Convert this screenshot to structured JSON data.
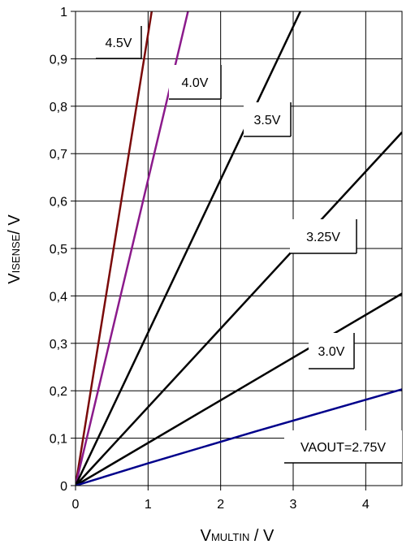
{
  "chart_data": {
    "type": "line",
    "xlabel": {
      "main": "V",
      "sub": "MULTIN",
      "unit": " / V"
    },
    "ylabel": {
      "main": "V",
      "sub": "ISENSE",
      "unit": "/ V"
    },
    "xlim": [
      0,
      4.5
    ],
    "ylim": [
      0,
      1
    ],
    "x_ticks": [
      0,
      1,
      2,
      3,
      4
    ],
    "x_tick_labels": [
      "0",
      "1",
      "2",
      "3",
      "4"
    ],
    "y_ticks": [
      0,
      0.1,
      0.2,
      0.3,
      0.4,
      0.5,
      0.6,
      0.7,
      0.8,
      0.9,
      1
    ],
    "y_tick_labels": [
      "0",
      "0,1",
      "0,2",
      "0,3",
      "0,4",
      "0,5",
      "0,6",
      "0,7",
      "0,8",
      "0,9",
      "1"
    ],
    "grid": true,
    "series": [
      {
        "name": "4.5V",
        "color": "#7a0a0a",
        "x": [
          0,
          1.05
        ],
        "y": [
          0,
          1
        ]
      },
      {
        "name": "4.0V",
        "color": "#8b1a8b",
        "x": [
          0,
          1.55
        ],
        "y": [
          0,
          1
        ]
      },
      {
        "name": "3.5V",
        "color": "#000000",
        "x": [
          0,
          3.1
        ],
        "y": [
          0,
          1
        ]
      },
      {
        "name": "3.25V",
        "color": "#000000",
        "x": [
          0,
          4.5
        ],
        "y": [
          0,
          0.745
        ]
      },
      {
        "name": "3.0V",
        "color": "#000000",
        "x": [
          0,
          4.5
        ],
        "y": [
          0,
          0.405
        ]
      },
      {
        "name": "VAOUT=2.75V",
        "color": "#00008b",
        "x": [
          0,
          1,
          2.5,
          4.5
        ],
        "y": [
          0,
          0.047,
          0.115,
          0.203
        ]
      }
    ]
  }
}
